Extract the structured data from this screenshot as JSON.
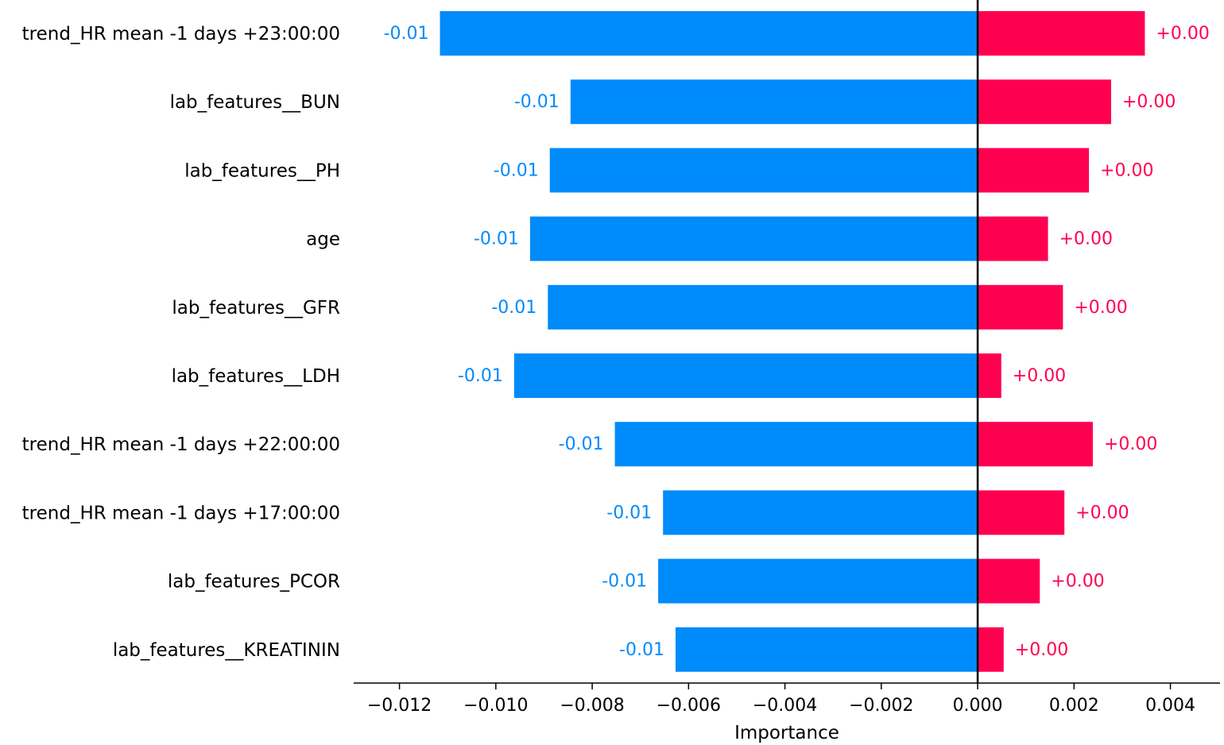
{
  "chart_data": {
    "type": "bar",
    "orientation": "horizontal",
    "xlabel": "Importance",
    "ylabel": "",
    "xlim": [
      -0.01295,
      0.00503
    ],
    "xticks": [
      -0.012,
      -0.01,
      -0.008,
      -0.006,
      -0.004,
      -0.002,
      0.0,
      0.002,
      0.004
    ],
    "xtick_labels": [
      "−0.012",
      "−0.010",
      "−0.008",
      "−0.006",
      "−0.004",
      "−0.002",
      "0.000",
      "0.002",
      "0.004"
    ],
    "categories": [
      "trend_HR mean -1 days +23:00:00",
      "lab_features__BUN",
      "lab_features__PH",
      "age",
      "lab_features__GFR",
      "lab_features__LDH",
      "trend_HR mean -1 days +22:00:00",
      "trend_HR mean -1 days +17:00:00",
      "lab_features_PCOR",
      "lab_features__KREATININ"
    ],
    "series": [
      {
        "values": [
          -0.01116,
          -0.00845,
          -0.00888,
          -0.00929,
          -0.00892,
          -0.00962,
          -0.00753,
          -0.00653,
          -0.00663,
          -0.00627
        ],
        "labels": [
          "-0.01",
          "-0.01",
          "-0.01",
          "-0.01",
          "-0.01",
          "-0.01",
          "-0.01",
          "-0.01",
          "-0.01",
          "-0.01"
        ],
        "color": "#008bfb"
      },
      {
        "values": [
          0.00347,
          0.00277,
          0.00231,
          0.00146,
          0.00177,
          0.00049,
          0.00239,
          0.0018,
          0.00129,
          0.00054
        ],
        "labels": [
          "+0.00",
          "+0.00",
          "+0.00",
          "+0.00",
          "+0.00",
          "+0.00",
          "+0.00",
          "+0.00",
          "+0.00",
          "+0.00"
        ],
        "color": "#ff0051"
      }
    ],
    "zero_line": true,
    "grid": false,
    "legend": "none"
  }
}
